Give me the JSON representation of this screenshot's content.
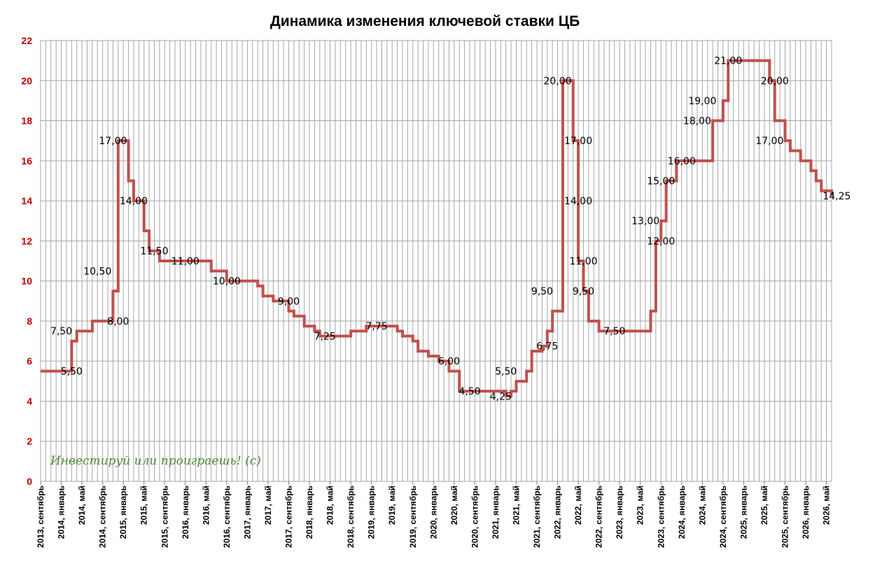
{
  "chart_data": {
    "type": "line",
    "title": "Динамика изменения ключевой ставки ЦБ",
    "xlabel": "",
    "ylabel": "",
    "ylim": [
      0,
      22
    ],
    "yticks": [
      0,
      2,
      4,
      6,
      8,
      10,
      12,
      14,
      16,
      18,
      20,
      22
    ],
    "grid": true,
    "line_color": "#c0504d",
    "tick_color": "#c00000",
    "watermark": "Инвестируй или проиграешь! (с)",
    "x_tick_labels": [
      "2013, сентябрь",
      "2014, январь",
      "2014, май",
      "2014, сентябрь",
      "2015, январь",
      "2015, май",
      "2015, сентябрь",
      "2016, январь",
      "2016, май",
      "2016, сентябрь",
      "2017, январь",
      "2017, май",
      "2017, сентябрь",
      "2018, январь",
      "2018, май",
      "2018, сентябрь",
      "2019, январь",
      "2019, май",
      "2019, сентябрь",
      "2020, январь",
      "2020, май",
      "2020, сентябрь",
      "2021, январь",
      "2021, май",
      "2021, сентябрь",
      "2022, январь",
      "2022, май",
      "2022, сентябрь",
      "2023, январь",
      "2023, май",
      "2023, сентябрь",
      "2024, январь",
      "2024, май",
      "2024, сентябрь",
      "2025, январь",
      "2025, май",
      "2025, сентябрь",
      "2026, январь",
      "2026, май"
    ],
    "x_start": "2013-09",
    "x_end": "2026-06",
    "steps": [
      [
        "2013-09",
        5.5
      ],
      [
        "2014-03",
        7.0
      ],
      [
        "2014-04",
        7.5
      ],
      [
        "2014-07",
        8.0
      ],
      [
        "2014-11",
        9.5
      ],
      [
        "2014-12",
        17.0
      ],
      [
        "2015-02",
        15.0
      ],
      [
        "2015-03",
        14.0
      ],
      [
        "2015-05",
        12.5
      ],
      [
        "2015-06",
        11.5
      ],
      [
        "2015-08",
        11.0
      ],
      [
        "2016-06",
        10.5
      ],
      [
        "2016-09",
        10.0
      ],
      [
        "2017-03",
        9.75
      ],
      [
        "2017-04",
        9.25
      ],
      [
        "2017-06",
        9.0
      ],
      [
        "2017-09",
        8.5
      ],
      [
        "2017-10",
        8.25
      ],
      [
        "2017-12",
        7.75
      ],
      [
        "2018-02",
        7.5
      ],
      [
        "2018-03",
        7.25
      ],
      [
        "2018-09",
        7.5
      ],
      [
        "2018-12",
        7.75
      ],
      [
        "2019-06",
        7.5
      ],
      [
        "2019-07",
        7.25
      ],
      [
        "2019-09",
        7.0
      ],
      [
        "2019-10",
        6.5
      ],
      [
        "2019-12",
        6.25
      ],
      [
        "2020-02",
        6.0
      ],
      [
        "2020-04",
        5.5
      ],
      [
        "2020-06",
        4.5
      ],
      [
        "2021-03",
        4.25
      ],
      [
        "2021-04",
        4.5
      ],
      [
        "2021-05",
        5.0
      ],
      [
        "2021-07",
        5.5
      ],
      [
        "2021-08",
        6.5
      ],
      [
        "2021-10",
        6.75
      ],
      [
        "2021-11",
        7.5
      ],
      [
        "2021-12",
        8.5
      ],
      [
        "2022-02",
        20.0
      ],
      [
        "2022-04",
        17.0
      ],
      [
        "2022-05",
        11.0
      ],
      [
        "2022-06",
        9.5
      ],
      [
        "2022-07",
        8.0
      ],
      [
        "2022-09",
        7.5
      ],
      [
        "2023-07",
        8.5
      ],
      [
        "2023-08",
        12.0
      ],
      [
        "2023-09",
        13.0
      ],
      [
        "2023-10",
        15.0
      ],
      [
        "2023-12",
        16.0
      ],
      [
        "2024-07",
        18.0
      ],
      [
        "2024-09",
        19.0
      ],
      [
        "2024-10",
        21.0
      ],
      [
        "2025-06",
        20.0
      ],
      [
        "2025-07",
        18.0
      ],
      [
        "2025-09",
        17.0
      ],
      [
        "2025-10",
        16.5
      ],
      [
        "2025-12",
        16.0
      ],
      [
        "2026-02",
        15.5
      ],
      [
        "2026-03",
        15.0
      ],
      [
        "2026-04",
        14.5
      ],
      [
        "2026-06",
        14.25
      ]
    ],
    "annotations": [
      {
        "text": "7,50",
        "date": "2014-01",
        "value": 7.5
      },
      {
        "text": "5,50",
        "date": "2014-03",
        "value": 5.5
      },
      {
        "text": "10,50",
        "date": "2014-08",
        "value": 10.5
      },
      {
        "text": "8,00",
        "date": "2014-12",
        "value": 8.0
      },
      {
        "text": "17,00",
        "date": "2014-11",
        "value": 17.0
      },
      {
        "text": "14,00",
        "date": "2015-03",
        "value": 14.0
      },
      {
        "text": "11,50",
        "date": "2015-07",
        "value": 11.5
      },
      {
        "text": "11,00",
        "date": "2016-01",
        "value": 11.0
      },
      {
        "text": "10,00",
        "date": "2016-09",
        "value": 10.0
      },
      {
        "text": "9,00",
        "date": "2017-09",
        "value": 9.0
      },
      {
        "text": "7,25",
        "date": "2018-04",
        "value": 7.25
      },
      {
        "text": "7,75",
        "date": "2019-02",
        "value": 7.75
      },
      {
        "text": "6,00",
        "date": "2020-04",
        "value": 6.0
      },
      {
        "text": "4,50",
        "date": "2020-08",
        "value": 4.5
      },
      {
        "text": "4,25",
        "date": "2021-02",
        "value": 4.25
      },
      {
        "text": "5,50",
        "date": "2021-03",
        "value": 5.5
      },
      {
        "text": "6,75",
        "date": "2021-11",
        "value": 6.75
      },
      {
        "text": "9,50",
        "date": "2021-10",
        "value": 9.5
      },
      {
        "text": "20,00",
        "date": "2022-01",
        "value": 20.0
      },
      {
        "text": "17,00",
        "date": "2022-05",
        "value": 17.0
      },
      {
        "text": "14,00",
        "date": "2022-05",
        "value": 14.0
      },
      {
        "text": "11,00",
        "date": "2022-06",
        "value": 11.0
      },
      {
        "text": "9,50",
        "date": "2022-06",
        "value": 9.5
      },
      {
        "text": "7,50",
        "date": "2022-12",
        "value": 7.5
      },
      {
        "text": "13,00",
        "date": "2023-06",
        "value": 13.0
      },
      {
        "text": "12,00",
        "date": "2023-09",
        "value": 12.0
      },
      {
        "text": "15,00",
        "date": "2023-09",
        "value": 15.0
      },
      {
        "text": "16,00",
        "date": "2024-01",
        "value": 16.0
      },
      {
        "text": "18,00",
        "date": "2024-04",
        "value": 18.0
      },
      {
        "text": "19,00",
        "date": "2024-05",
        "value": 19.0
      },
      {
        "text": "21,00",
        "date": "2024-10",
        "value": 21.0
      },
      {
        "text": "20,00",
        "date": "2025-07",
        "value": 20.0
      },
      {
        "text": "17,00",
        "date": "2025-06",
        "value": 17.0
      },
      {
        "text": "14,25",
        "date": "2026-07",
        "value": 14.25
      }
    ]
  }
}
